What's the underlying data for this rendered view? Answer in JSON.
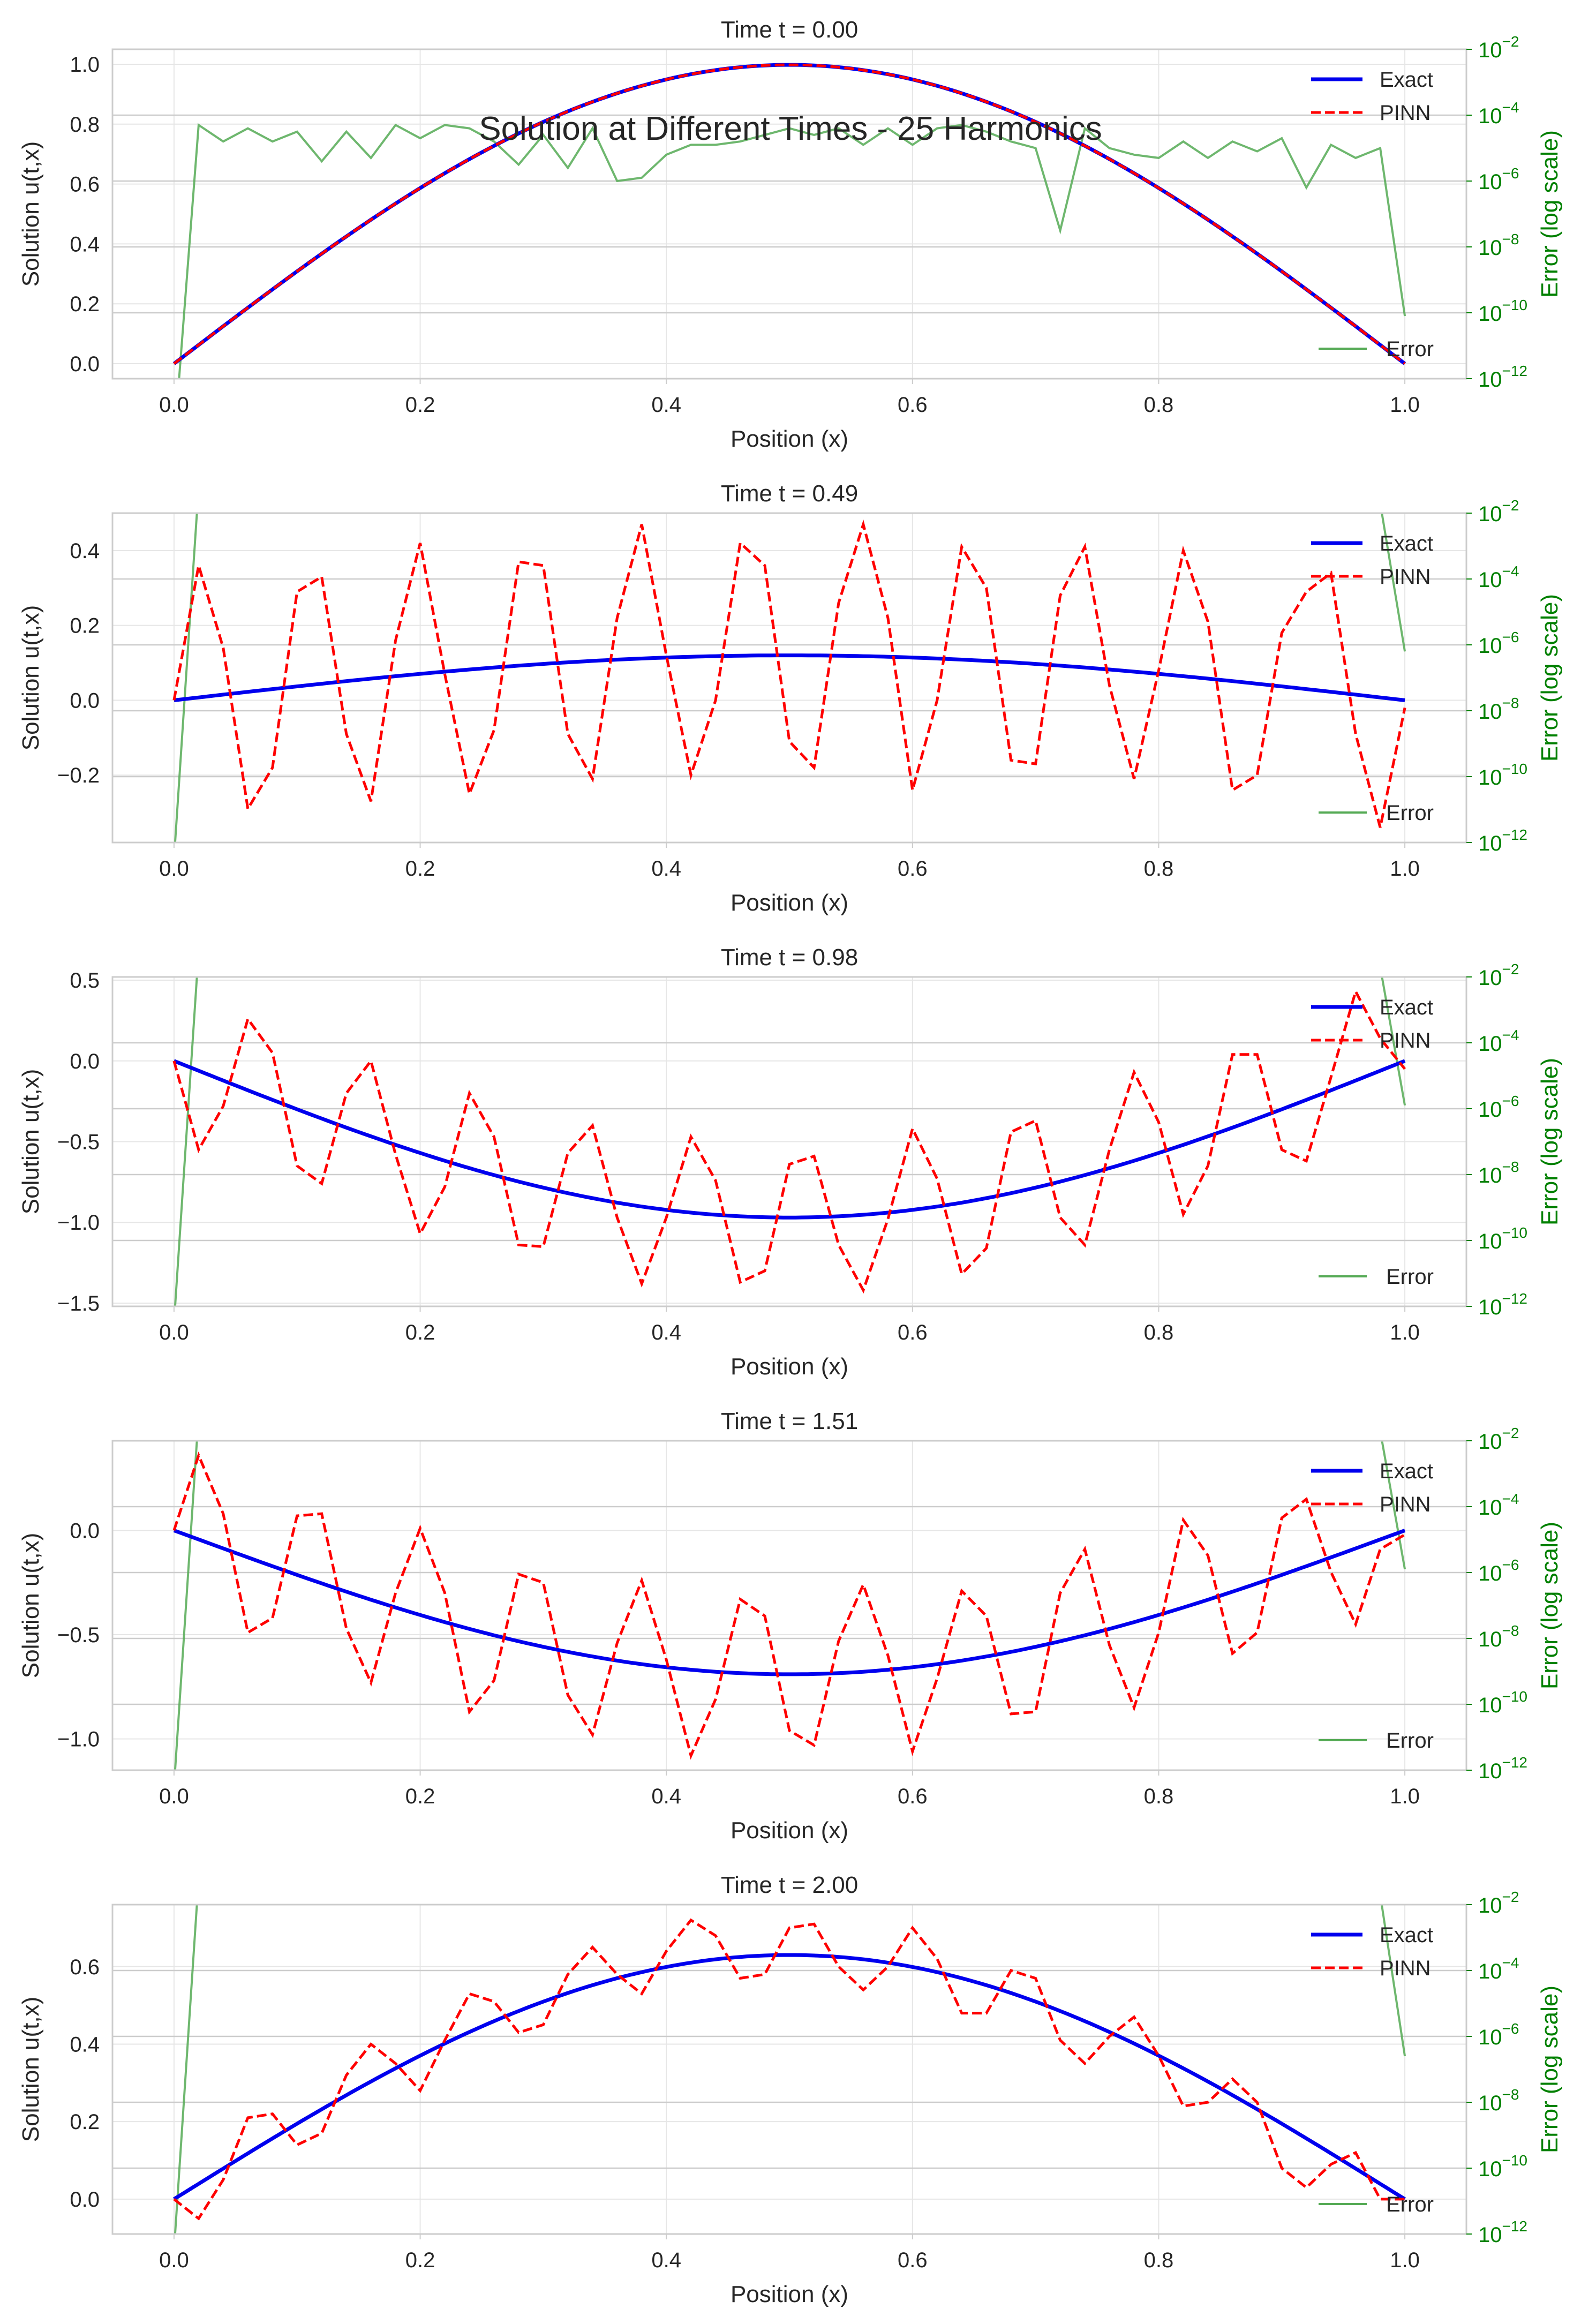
{
  "figure": {
    "suptitle": "Solution at Different Times - 25 Harmonics"
  },
  "colors": {
    "exact": "#0000ee",
    "pinn": "#ff0000",
    "error": "#55aa55",
    "right_axis": "#008000",
    "grid": "#e6e6e6",
    "spine": "#cccccc",
    "text": "#262626"
  },
  "chart_data": [
    {
      "type": "line",
      "title": "Time t = 0.00",
      "xlabel": "Position (x)",
      "ylabel": "Solution u(t,x)",
      "y2label": "Error (log scale)",
      "y2scale": "log",
      "xlim": [
        -0.05,
        1.05
      ],
      "ylim": [
        -0.05,
        1.05
      ],
      "y2lim_exp": [
        -12,
        -2
      ],
      "xticks": [
        "0.0",
        "0.2",
        "0.4",
        "0.6",
        "0.8",
        "1.0"
      ],
      "yticks": [
        "0.0",
        "0.2",
        "0.4",
        "0.6",
        "0.8",
        "1.0"
      ],
      "y2ticks": [
        "-12",
        "-10",
        "-8",
        "-6",
        "-4",
        "-2"
      ],
      "legend_upper": [
        "Exact",
        "PINN"
      ],
      "legend_lower": [
        "Error"
      ],
      "legend_placement": "upper right / lower right",
      "grid": true,
      "series": [
        {
          "name": "Exact",
          "function": "0.998*sin(pi*x)"
        },
        {
          "name": "PINN",
          "function": "0.998*sin(pi*x)"
        },
        {
          "name": "Error",
          "log10_values": [
            -14,
            -4.3,
            -4.8,
            -4.4,
            -4.8,
            -4.5,
            -5.4,
            -4.5,
            -5.3,
            -4.3,
            -4.7,
            -4.3,
            -4.4,
            -4.8,
            -5.5,
            -4.6,
            -5.6,
            -4.4,
            -6.0,
            -5.9,
            -5.2,
            -4.9,
            -4.9,
            -4.8,
            -4.6,
            -4.4,
            -4.6,
            -4.4,
            -4.9,
            -4.4,
            -4.9,
            -4.4,
            -4.3,
            -4.5,
            -4.8,
            -5.0,
            -7.5,
            -4.4,
            -5.0,
            -5.2,
            -5.3,
            -4.8,
            -5.3,
            -4.8,
            -5.1,
            -4.7,
            -6.2,
            -4.9,
            -5.3,
            -5.0,
            -10.1
          ]
        }
      ]
    },
    {
      "type": "line",
      "title": "Time t = 0.49",
      "xlabel": "Position (x)",
      "ylabel": "Solution u(t,x)",
      "y2label": "Error (log scale)",
      "y2scale": "log",
      "xlim": [
        -0.05,
        1.05
      ],
      "ylim": [
        -0.38,
        0.5
      ],
      "y2lim_exp": [
        -12,
        -2
      ],
      "xticks": [
        "0.0",
        "0.2",
        "0.4",
        "0.6",
        "0.8",
        "1.0"
      ],
      "yticks": [
        "-0.2",
        "0.0",
        "0.2",
        "0.4"
      ],
      "y2ticks": [
        "-12",
        "-10",
        "-8",
        "-6",
        "-4",
        "-2"
      ],
      "legend_upper": [
        "Exact",
        "PINN"
      ],
      "legend_lower": [
        "Error"
      ],
      "legend_placement": "upper right / lower right",
      "grid": true,
      "series": [
        {
          "name": "Exact",
          "function": "0.12*sin(pi*x)"
        },
        {
          "name": "PINN",
          "values": [
            0.0,
            0.36,
            0.14,
            -0.29,
            -0.18,
            0.29,
            0.33,
            -0.09,
            -0.27,
            0.16,
            0.42,
            0.07,
            -0.25,
            -0.08,
            0.37,
            0.36,
            -0.09,
            -0.21,
            0.22,
            0.47,
            0.12,
            -0.2,
            0.0,
            0.42,
            0.36,
            -0.11,
            -0.18,
            0.26,
            0.47,
            0.22,
            -0.24,
            0.0,
            0.41,
            0.3,
            -0.16,
            -0.17,
            0.28,
            0.41,
            0.04,
            -0.21,
            0.08,
            0.4,
            0.21,
            -0.24,
            -0.2,
            0.18,
            0.29,
            0.34,
            -0.09,
            -0.34,
            -0.02
          ]
        },
        {
          "name": "Error",
          "log10_values": [
            -12.5,
            -1.2,
            -1.0,
            -1.0,
            -1.0,
            -1.0,
            -1.0,
            -1.0,
            -1.0,
            -1.0,
            -1.0,
            -1.0,
            -1.0,
            -1.0,
            -1.0,
            -1.0,
            -1.0,
            -1.0,
            -1.0,
            -1.0,
            -1.0,
            -1.0,
            -1.0,
            -1.0,
            -1.0,
            -1.0,
            -1.0,
            -1.0,
            -1.0,
            -1.0,
            -1.0,
            -1.0,
            -1.0,
            -1.0,
            -1.0,
            -1.0,
            -1.0,
            -1.0,
            -1.0,
            -1.0,
            -1.0,
            -1.0,
            -1.0,
            -1.0,
            -1.0,
            -1.0,
            -1.0,
            -1.0,
            -1.0,
            -1.7,
            -6.2
          ]
        }
      ]
    },
    {
      "type": "line",
      "title": "Time t = 0.98",
      "xlabel": "Position (x)",
      "ylabel": "Solution u(t,x)",
      "y2label": "Error (log scale)",
      "y2scale": "log",
      "xlim": [
        -0.05,
        1.05
      ],
      "ylim": [
        -1.52,
        0.52
      ],
      "y2lim_exp": [
        -12,
        -2
      ],
      "xticks": [
        "0.0",
        "0.2",
        "0.4",
        "0.6",
        "0.8",
        "1.0"
      ],
      "yticks": [
        "-1.5",
        "-1.0",
        "-0.5",
        "0.0",
        "0.5"
      ],
      "y2ticks": [
        "-12",
        "-10",
        "-8",
        "-6",
        "-4",
        "-2"
      ],
      "legend_upper": [
        "Exact",
        "PINN"
      ],
      "legend_lower": [
        "Error"
      ],
      "legend_placement": "upper right / lower right",
      "grid": true,
      "series": [
        {
          "name": "Exact",
          "function": "-0.97*sin(pi*x)"
        },
        {
          "name": "PINN",
          "values": [
            0.0,
            -0.55,
            -0.28,
            0.26,
            0.05,
            -0.65,
            -0.76,
            -0.2,
            0.0,
            -0.58,
            -1.07,
            -0.78,
            -0.2,
            -0.47,
            -1.14,
            -1.15,
            -0.57,
            -0.4,
            -0.97,
            -1.38,
            -0.97,
            -0.47,
            -0.74,
            -1.37,
            -1.3,
            -0.64,
            -0.59,
            -1.14,
            -1.42,
            -0.98,
            -0.42,
            -0.73,
            -1.32,
            -1.16,
            -0.44,
            -0.37,
            -0.97,
            -1.14,
            -0.55,
            -0.07,
            -0.38,
            -0.95,
            -0.65,
            0.04,
            0.04,
            -0.55,
            -0.62,
            -0.1,
            0.43,
            0.14,
            -0.05
          ]
        },
        {
          "name": "Error",
          "log10_values": [
            -12.5,
            -1.2,
            -1.0,
            -1.0,
            -1.0,
            -1.0,
            -1.0,
            -1.0,
            -1.0,
            -1.0,
            -1.0,
            -1.0,
            -1.0,
            -1.0,
            -1.0,
            -1.0,
            -1.0,
            -1.0,
            -1.0,
            -1.0,
            -1.0,
            -1.0,
            -1.0,
            -1.0,
            -1.0,
            -1.0,
            -1.0,
            -1.0,
            -1.0,
            -1.0,
            -1.0,
            -1.0,
            -1.0,
            -1.0,
            -1.0,
            -1.0,
            -1.0,
            -1.0,
            -1.0,
            -1.0,
            -1.0,
            -1.0,
            -1.0,
            -1.0,
            -1.0,
            -1.0,
            -1.0,
            -1.0,
            -1.0,
            -1.7,
            -5.9
          ]
        }
      ]
    },
    {
      "type": "line",
      "title": "Time t = 1.51",
      "xlabel": "Position (x)",
      "ylabel": "Solution u(t,x)",
      "y2label": "Error (log scale)",
      "y2scale": "log",
      "xlim": [
        -0.05,
        1.05
      ],
      "ylim": [
        -1.15,
        0.43
      ],
      "y2lim_exp": [
        -12,
        -2
      ],
      "xticks": [
        "0.0",
        "0.2",
        "0.4",
        "0.6",
        "0.8",
        "1.0"
      ],
      "yticks": [
        "-1.0",
        "-0.5",
        "0.0"
      ],
      "y2ticks": [
        "-12",
        "-10",
        "-8",
        "-6",
        "-4",
        "-2"
      ],
      "legend_upper": [
        "Exact",
        "PINN"
      ],
      "legend_lower": [
        "Error"
      ],
      "legend_placement": "upper right / lower right",
      "grid": true,
      "series": [
        {
          "name": "Exact",
          "function": "-0.69*sin(pi*x)"
        },
        {
          "name": "PINN",
          "values": [
            0.0,
            0.36,
            0.08,
            -0.49,
            -0.42,
            0.07,
            0.08,
            -0.47,
            -0.73,
            -0.3,
            0.01,
            -0.3,
            -0.87,
            -0.72,
            -0.21,
            -0.25,
            -0.79,
            -0.98,
            -0.54,
            -0.24,
            -0.62,
            -1.08,
            -0.81,
            -0.33,
            -0.41,
            -0.96,
            -1.03,
            -0.53,
            -0.26,
            -0.6,
            -1.06,
            -0.71,
            -0.29,
            -0.41,
            -0.88,
            -0.87,
            -0.3,
            -0.09,
            -0.55,
            -0.85,
            -0.49,
            0.05,
            -0.12,
            -0.59,
            -0.49,
            0.06,
            0.15,
            -0.2,
            -0.45,
            -0.09,
            -0.02
          ]
        },
        {
          "name": "Error",
          "log10_values": [
            -12.5,
            -1.2,
            -1.0,
            -1.0,
            -1.0,
            -1.0,
            -1.0,
            -1.0,
            -1.0,
            -1.0,
            -1.0,
            -1.0,
            -1.0,
            -1.0,
            -1.0,
            -1.0,
            -1.0,
            -1.0,
            -1.0,
            -1.0,
            -1.0,
            -1.0,
            -1.0,
            -1.0,
            -1.0,
            -1.0,
            -1.0,
            -1.0,
            -1.0,
            -1.0,
            -1.0,
            -1.0,
            -1.0,
            -1.0,
            -1.0,
            -1.0,
            -1.0,
            -1.0,
            -1.0,
            -1.0,
            -1.0,
            -1.0,
            -1.0,
            -1.0,
            -1.0,
            -1.0,
            -1.0,
            -1.0,
            -1.0,
            -1.7,
            -5.9
          ]
        }
      ]
    },
    {
      "type": "line",
      "title": "Time t = 2.00",
      "xlabel": "Position (x)",
      "ylabel": "Solution u(t,x)",
      "y2label": "Error (log scale)",
      "y2scale": "log",
      "xlim": [
        -0.05,
        1.05
      ],
      "ylim": [
        -0.09,
        0.76
      ],
      "y2lim_exp": [
        -12,
        -2
      ],
      "xticks": [
        "0.0",
        "0.2",
        "0.4",
        "0.6",
        "0.8",
        "1.0"
      ],
      "yticks": [
        "0.0",
        "0.2",
        "0.4",
        "0.6"
      ],
      "y2ticks": [
        "-12",
        "-10",
        "-8",
        "-6",
        "-4",
        "-2"
      ],
      "legend_upper": [
        "Exact",
        "PINN"
      ],
      "legend_lower": [
        "Error"
      ],
      "legend_placement": "upper right / lower right",
      "grid": true,
      "series": [
        {
          "name": "Exact",
          "function": "0.63*sin(pi*x)"
        },
        {
          "name": "PINN",
          "values": [
            0.0,
            -0.05,
            0.05,
            0.21,
            0.22,
            0.14,
            0.17,
            0.32,
            0.4,
            0.35,
            0.28,
            0.41,
            0.53,
            0.51,
            0.43,
            0.45,
            0.58,
            0.65,
            0.58,
            0.53,
            0.64,
            0.72,
            0.68,
            0.57,
            0.58,
            0.7,
            0.71,
            0.6,
            0.54,
            0.6,
            0.7,
            0.62,
            0.48,
            0.48,
            0.59,
            0.57,
            0.41,
            0.35,
            0.42,
            0.47,
            0.37,
            0.24,
            0.25,
            0.31,
            0.25,
            0.08,
            0.03,
            0.09,
            0.12,
            0.0,
            0.0
          ]
        },
        {
          "name": "Error",
          "log10_values": [
            -12.5,
            -1.2,
            -1.0,
            -1.0,
            -1.0,
            -1.0,
            -1.0,
            -1.0,
            -1.0,
            -1.0,
            -1.0,
            -1.0,
            -1.0,
            -1.0,
            -1.0,
            -1.0,
            -1.0,
            -1.0,
            -1.0,
            -1.0,
            -1.7,
            -1.0,
            -1.0,
            -1.0,
            -1.0,
            -1.0,
            -1.0,
            -1.0,
            -1.0,
            -1.7,
            -1.0,
            -1.0,
            -1.0,
            -1.0,
            -1.0,
            -1.0,
            -1.0,
            -1.0,
            -1.0,
            -1.0,
            -1.0,
            -1.0,
            -1.0,
            -1.0,
            -1.0,
            -1.0,
            -1.0,
            -1.0,
            -1.0,
            -1.7,
            -6.6
          ]
        }
      ]
    }
  ]
}
